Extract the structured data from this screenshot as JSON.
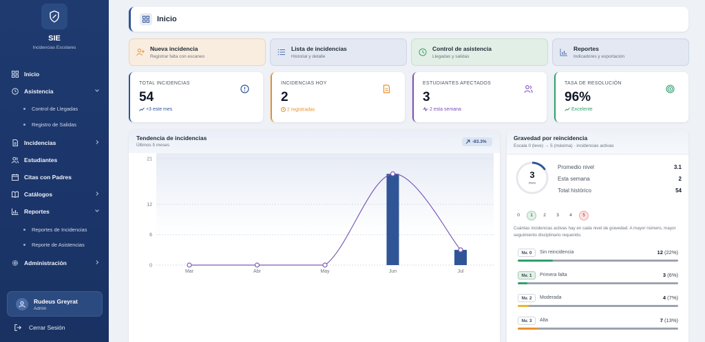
{
  "sidebar": {
    "brand": "SIE",
    "subtitle": "Incidencias Escolares",
    "items": [
      {
        "label": "Inicio",
        "icon": "dashboard-icon"
      },
      {
        "label": "Asistencia",
        "icon": "clock-icon"
      },
      {
        "label": "Control de Llegadas"
      },
      {
        "label": "Registro de Salidas"
      },
      {
        "label": "Incidencias",
        "icon": "document-icon"
      },
      {
        "label": "Estudiantes",
        "icon": "users-icon"
      },
      {
        "label": "Citas con Padres",
        "icon": "calendar-icon"
      },
      {
        "label": "Catálogos",
        "icon": "book-icon"
      },
      {
        "label": "Reportes",
        "icon": "bar-chart-icon"
      },
      {
        "label": "Reportes de Incidencias"
      },
      {
        "label": "Reporte de Asistencias"
      },
      {
        "label": "Administración",
        "icon": "gear-icon"
      }
    ],
    "user": {
      "name": "Rudeus Greyrat",
      "role": "Admin"
    },
    "logout": "Cerrar Sesión"
  },
  "header": {
    "title": "Inicio"
  },
  "actions": [
    {
      "title": "Nueva incidencia",
      "subtitle": "Registrar falta con escaneo",
      "color": "#f0a14a"
    },
    {
      "title": "Lista de incidencias",
      "subtitle": "Historial y detalle",
      "color": "#4a6ea8"
    },
    {
      "title": "Control de asistencia",
      "subtitle": "Llegadas y salidas",
      "color": "#3f9d6a"
    },
    {
      "title": "Reportes",
      "subtitle": "Indicadores y exportación",
      "color": "#5b79b4"
    }
  ],
  "stats": [
    {
      "label": "TOTAL INCIDENCIAS",
      "value": "54",
      "note": "+3 este mes",
      "accent": "#2f5597"
    },
    {
      "label": "INCIDENCIAS HOY",
      "value": "2",
      "note": "2 registradas",
      "accent": "#e8902b"
    },
    {
      "label": "ESTUDIANTES AFECTADOS",
      "value": "3",
      "note": "2 esta semana",
      "accent": "#7a4fb5"
    },
    {
      "label": "TASA DE RESOLUCIÓN",
      "value": "96%",
      "note": "Excelente",
      "accent": "#2e9e6b"
    }
  ],
  "trend": {
    "title": "Tendencia de incidencias",
    "subtitle": "Últimos 5 meses",
    "badge": "-83.3%"
  },
  "chart_data": {
    "type": "bar",
    "categories": [
      "Mar",
      "Abr",
      "May",
      "Jun",
      "Jul"
    ],
    "values": [
      0,
      0,
      0,
      18,
      3
    ],
    "line_values": [
      0,
      0,
      0,
      18,
      3
    ],
    "yticks": [
      0,
      6,
      12,
      21
    ],
    "ylim": [
      0,
      21
    ],
    "bar_color": "#2f5597",
    "line_color": "#7b5bb5"
  },
  "severity": {
    "title": "Gravedad por reincidencia",
    "subtitle": "Escala 0 (leve) → 5 (máxima) · incidencias activas",
    "ring_value": "3",
    "ring_unit": "mes",
    "metrics": [
      {
        "label": "Promedio nivel",
        "value": "3.1"
      },
      {
        "label": "Esta semana",
        "value": "2"
      },
      {
        "label": "Total histórico",
        "value": "54"
      }
    ],
    "levels": [
      "0",
      "1",
      "2",
      "3",
      "4",
      "5"
    ],
    "description": "Cuántas incidencias activas hay en cada nivel de gravedad. A mayor número, mayor seguimiento disciplinario requerido.",
    "rows": [
      {
        "level": "Nv. 0",
        "label": "Sin reincidencia",
        "count": "12",
        "pct": "(22%)",
        "fraction": 0.22,
        "color": "#2e9e6b"
      },
      {
        "level": "Nv. 1",
        "label": "Primera falta",
        "count": "3",
        "pct": "(6%)",
        "fraction": 0.06,
        "color": "#2e9e6b"
      },
      {
        "level": "Nv. 2",
        "label": "Moderada",
        "count": "4",
        "pct": "(7%)",
        "fraction": 0.07,
        "color": "#e8b82b"
      },
      {
        "level": "Nv. 3",
        "label": "Alta",
        "count": "7",
        "pct": "(13%)",
        "fraction": 0.13,
        "color": "#e8902b"
      }
    ]
  }
}
